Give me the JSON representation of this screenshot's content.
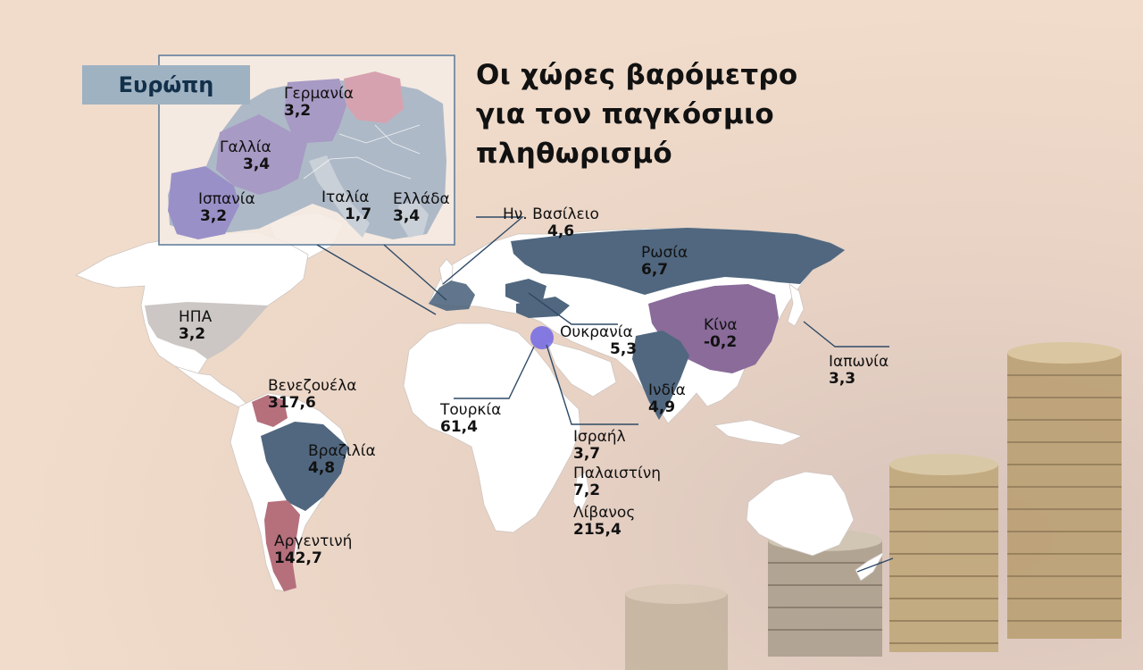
{
  "title_lines": [
    "Οι χώρες βαρόμετρο",
    "για τον παγκόσμιο",
    "πληθωρισμό"
  ],
  "europe_label": "Ευρώπη",
  "regions": {
    "usa": {
      "name": "ΗΠΑ",
      "value": "3,2"
    },
    "venezuela": {
      "name": "Βενεζουέλα",
      "value": "317,6"
    },
    "brazil": {
      "name": "Βραζιλία",
      "value": "4,8"
    },
    "argentina": {
      "name": "Αργεντινή",
      "value": "142,7"
    },
    "uk": {
      "name": "Ην. Βασίλειο",
      "value": "4,6"
    },
    "russia": {
      "name": "Ρωσία",
      "value": "6,7"
    },
    "ukraine": {
      "name": "Ουκρανία",
      "value": "5,3"
    },
    "china": {
      "name": "Κίνα",
      "value": "-0,2"
    },
    "japan": {
      "name": "Ιαπωνία",
      "value": "3,3"
    },
    "india": {
      "name": "Ινδία",
      "value": "4,9"
    },
    "turkey": {
      "name": "Τουρκία",
      "value": "61,4"
    },
    "israel": {
      "name": "Ισραήλ",
      "value": "3,7"
    },
    "palestine": {
      "name": "Παλαιστίνη",
      "value": "7,2"
    },
    "lebanon": {
      "name": "Λίβανος",
      "value": "215,4"
    },
    "germany": {
      "name": "Γερμανία",
      "value": "3,2"
    },
    "france": {
      "name": "Γαλλία",
      "value": "3,4"
    },
    "spain": {
      "name": "Ισπανία",
      "value": "3,2"
    },
    "italy": {
      "name": "Ιταλία",
      "value": "1,7"
    },
    "greece": {
      "name": "Ελλάδα",
      "value": "3,4"
    }
  },
  "colors": {
    "background": "#f1dccb",
    "land": "#ffffff",
    "highlight_blue": "#50677f",
    "highlight_purple": "#8a6b9a",
    "highlight_red": "#b5707c",
    "highlight_lavender": "#a79ac4",
    "europe_label_bg": "#9fb2c2"
  }
}
